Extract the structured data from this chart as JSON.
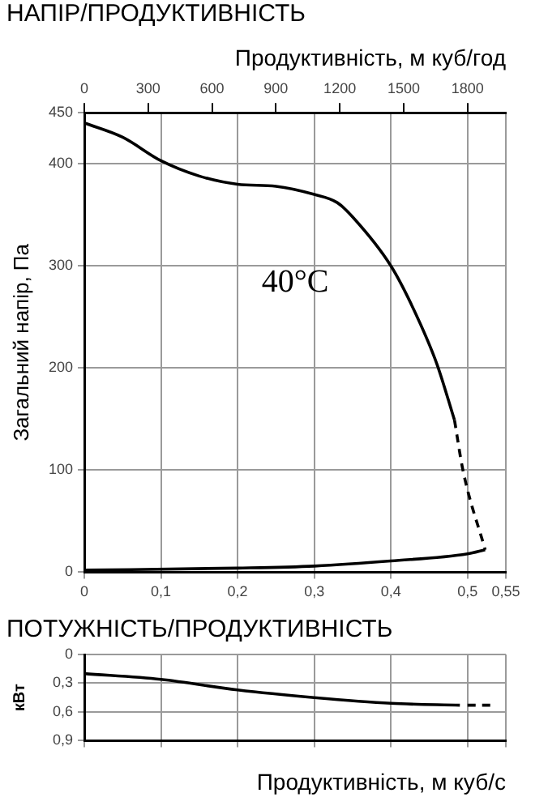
{
  "chart_data": [
    {
      "type": "line",
      "title": "НАПІР/ПРОДУКТИВНІСТЬ",
      "ylabel": "Загальний напір, Па",
      "x2label": "Продуктивність, м куб/год",
      "annotations": [
        "40°C"
      ],
      "xlim": [
        0,
        0.55
      ],
      "xticks": [
        0,
        {
          "value": 0.1,
          "label": "0,1"
        },
        {
          "value": 0.2,
          "label": "0,2"
        },
        {
          "value": 0.3,
          "label": "0,3"
        },
        {
          "value": 0.4,
          "label": "0,4"
        },
        {
          "value": 0.5,
          "label": "0,5"
        },
        {
          "value": 0.55,
          "label": "0,55"
        }
      ],
      "x2lim": [
        0,
        1980
      ],
      "x2ticks": [
        0,
        300,
        600,
        900,
        1200,
        1500,
        1800
      ],
      "ylim": [
        0,
        450
      ],
      "yticks": [
        0,
        100,
        200,
        300,
        400,
        450
      ],
      "grid": true,
      "series": [
        {
          "color": "#000000",
          "x": [
            0,
            0.05,
            0.1,
            0.15,
            0.2,
            0.25,
            0.3,
            0.33,
            0.35,
            0.4,
            0.43,
            0.46,
            0.483
          ],
          "values": [
            440,
            426,
            403,
            388,
            380,
            378,
            370,
            362,
            348,
            300,
            257,
            204,
            149
          ]
        },
        {
          "color": "#000000",
          "line_style": "dashed",
          "x": [
            0.483,
            0.494,
            0.523
          ],
          "values": [
            149,
            100,
            22
          ]
        },
        {
          "color": "#000000",
          "x": [
            0,
            0.2,
            0.3,
            0.4,
            0.5,
            0.523
          ],
          "values": [
            2,
            4,
            6,
            11,
            18,
            22
          ]
        }
      ]
    },
    {
      "type": "line",
      "title": "ПОТУЖНІСТЬ/ПРОДУКТИВНІСТЬ",
      "ylabel": "кВт",
      "xlabel": "Продуктивність, м куб/с",
      "xlim": [
        0,
        0.55
      ],
      "xticks": [
        0,
        0.1,
        0.2,
        0.3,
        0.4,
        0.5,
        0.55
      ],
      "tick_labels": "y",
      "ylim": [
        0.9,
        0
      ],
      "yticks": [
        0,
        {
          "value": 0.3,
          "label": "0,3"
        },
        {
          "value": 0.6,
          "label": "0,6"
        },
        {
          "value": 0.9,
          "label": "0,9"
        }
      ],
      "grid": true,
      "series": [
        {
          "color": "#000000",
          "x": [
            0,
            0.1,
            0.2,
            0.3,
            0.4,
            0.49
          ],
          "values": [
            0.2,
            0.26,
            0.37,
            0.45,
            0.51,
            0.53
          ]
        },
        {
          "color": "#000000",
          "line_style": "dashed",
          "x": [
            0.5,
            0.53
          ],
          "values": [
            0.53,
            0.53
          ]
        }
      ]
    }
  ]
}
